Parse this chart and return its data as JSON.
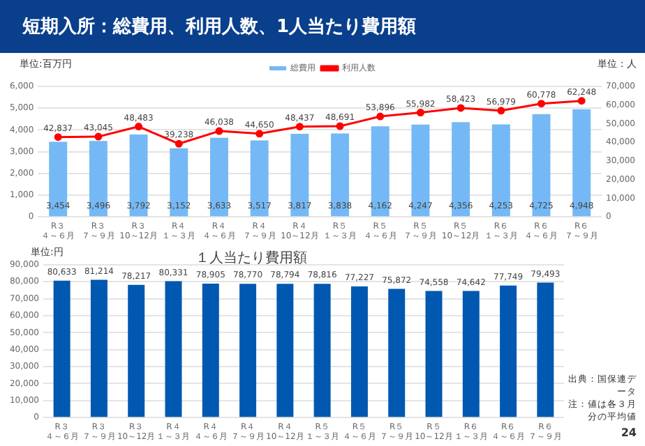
{
  "chart_data": [
    {
      "type": "bar",
      "title": "短期入所：総費用、利用人数、1人当たり費用額",
      "ylabel": "単位:百万円",
      "y2label": "単位：人",
      "categories": [
        "R３４～６月",
        "R３７～９月",
        "R３10～12月",
        "R４１～３月",
        "R４４～６月",
        "R４７～９月",
        "R４10～12月",
        "R５１～３月",
        "R５４～６月",
        "R５７～９月",
        "R５10～12月",
        "R６１～３月",
        "R６４～６月",
        "R６７～９月"
      ],
      "series": [
        {
          "name": "総費用",
          "color": "#74b9f5",
          "values": [
            3454,
            3496,
            3792,
            3152,
            3633,
            3517,
            3817,
            3838,
            4162,
            4247,
            4356,
            4253,
            4725,
            4948
          ],
          "value_labels": [
            "3,454",
            "3,496",
            "3,792",
            "3,152",
            "3,633",
            "3,517",
            "3,817",
            "3,838",
            "4,162",
            "4,247",
            "4,356",
            "4,253",
            "4,725",
            "4,948"
          ]
        },
        {
          "name": "利用人数",
          "type": "line",
          "axis": "y2",
          "color": "#ff0000",
          "values": [
            42837,
            43045,
            48483,
            39238,
            46038,
            44650,
            48437,
            48691,
            53896,
            55982,
            58423,
            56979,
            60778,
            62248
          ],
          "value_labels": [
            "42,837",
            "43,045",
            "48,483",
            "39,238",
            "46,038",
            "44,650",
            "48,437",
            "48,691",
            "53,896",
            "55,982",
            "58,423",
            "56,979",
            "60,778",
            "62,248"
          ]
        }
      ],
      "ylim": [
        0,
        6000
      ],
      "yticks": [
        0,
        {
          "value": 1000,
          "label": "1,000"
        },
        {
          "value": 2000,
          "label": "2,000"
        },
        {
          "value": 3000,
          "label": "3,000"
        },
        {
          "value": 4000,
          "label": "4,000"
        },
        {
          "value": 5000,
          "label": "5,000"
        },
        {
          "value": 6000,
          "label": "6,000"
        }
      ],
      "y2lim": [
        0,
        70000
      ],
      "y2ticks": [
        0,
        {
          "value": 10000,
          "label": "10,000"
        },
        {
          "value": 20000,
          "label": "20,000"
        },
        {
          "value": 30000,
          "label": "30,000"
        },
        {
          "value": 40000,
          "label": "40,000"
        },
        {
          "value": 50000,
          "label": "50,000"
        },
        {
          "value": 60000,
          "label": "60,000"
        },
        {
          "value": 70000,
          "label": "70,000"
        }
      ],
      "grid": "y",
      "legend": "top",
      "marker": "circle"
    },
    {
      "type": "bar",
      "title": "１人当たり費用額",
      "ylabel": "単位:円",
      "categories": [
        "R３４～６月",
        "R３７～９月",
        "R３10～12月",
        "R４１～３月",
        "R４４～６月",
        "R４７～９月",
        "R４10～12月",
        "R５１～３月",
        "R５４～６月",
        "R５７～９月",
        "R５10～12月",
        "R６１～３月",
        "R６４～６月",
        "R６７～９月"
      ],
      "series": [
        {
          "color": "#0058b0",
          "values": [
            80633,
            81214,
            78217,
            80331,
            78905,
            78770,
            78794,
            78816,
            77227,
            75872,
            74558,
            74642,
            77749,
            79493
          ],
          "value_labels": [
            "80,633",
            "81,214",
            "78,217",
            "80,331",
            "78,905",
            "78,770",
            "78,794",
            "78,816",
            "77,227",
            "75,872",
            "74,558",
            "74,642",
            "77,749",
            "79,493"
          ]
        }
      ],
      "ylim": [
        0,
        90000
      ],
      "yticks": [
        0,
        {
          "value": 10000,
          "label": "10,000"
        },
        {
          "value": 20000,
          "label": "20,000"
        },
        {
          "value": 30000,
          "label": "30,000"
        },
        {
          "value": 40000,
          "label": "40,000"
        },
        {
          "value": 50000,
          "label": "50,000"
        },
        {
          "value": 60000,
          "label": "60,000"
        },
        {
          "value": 70000,
          "label": "70,000"
        },
        {
          "value": 80000,
          "label": "80,000"
        },
        {
          "value": 90000,
          "label": "90,000"
        }
      ],
      "grid": "y",
      "annotations": [
        "出典：国保連データ",
        "注：値は各３月分の平均値",
        "24"
      ]
    }
  ]
}
